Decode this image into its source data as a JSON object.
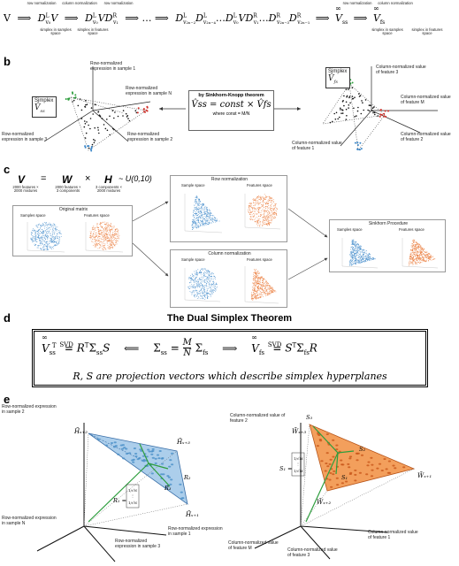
{
  "section_a": {
    "formula": "V ⟹ D^L_{v0} V ⟹ D^L_{v0} V D^R_{v1} ⟹ … ⟹ D^L_{v2n−2} D^L_{v2n−4} … D^L_{v0} V D^R_{v1} … D^R_{v2n−3} D^R_{v2n−1} ⟹ V̂ss ⟹ V̂fs",
    "parts": {
      "V": "V",
      "t1": "D",
      "t2": "D",
      "dots1": "…",
      "long": "D",
      "vss": "V",
      "vfs": "V"
    },
    "arrow_labels": [
      {
        "top": "row normalization",
        "bottom": "simplex in samples space"
      },
      {
        "top": "column normalization",
        "bottom": "simplex in features space"
      },
      {
        "top": "row normalization",
        "bottom": ""
      },
      {
        "top": "column normalization",
        "bottom": ""
      }
    ],
    "end_labels": [
      {
        "top": "row normalization",
        "bottom": "simplex in samples space"
      },
      {
        "top": "column normalization",
        "bottom": "simplex in features space"
      }
    ]
  },
  "section_b": {
    "label": "b",
    "left_simplex": "Simplex",
    "left_axes": [
      "Row-normalized expression in sample 1",
      "Row-normalized expression in sample N",
      "Row-normalized expression in sample 3",
      "Row-normalized expression in sample 2"
    ],
    "theorem_title": "by Sinkhorn-Knopp theorem",
    "theorem_formula": "V̂ss = const × V̂fs",
    "theorem_where": "where const = M/N",
    "right_simplex": "Simplex",
    "right_axes": [
      "Column-normalized value of feature 3",
      "Column-normalized value of feature M",
      "Column-normalized value of feature 2",
      "Column-normalized value of feature 1"
    ]
  },
  "section_c": {
    "label": "c",
    "equation": {
      "V": "V",
      "eq": "=",
      "W": "W",
      "x": "×",
      "H": "H",
      "dist": "~ U(0,10)",
      "V_dims": "2000 features × 2000 mixtures",
      "W_dims": "2000 features × 3 components",
      "H_dims": "3 components × 2000 mixtures"
    },
    "original": {
      "title": "Original matrix",
      "left": "Samples space",
      "right": "Features space"
    },
    "row_norm": {
      "title": "Row normalization",
      "left": "Sample space",
      "right": "Features space"
    },
    "col_norm": {
      "title": "Column normalization",
      "left": "Sample space",
      "right": "Features space"
    },
    "sinkhorn": {
      "title": "Sinkhorn Procedure",
      "left": "Samples space",
      "right": "Features space"
    }
  },
  "section_d": {
    "label": "d",
    "title": "The Dual Simplex Theorem",
    "line1": "V̂ssᵀ = Rᵀ Σss S   ⟸   Σss = (M/N) Σfs   ⟹   V̂fs = Sᵀ Σfs R",
    "line2": "R, S are projection vectors which describe simplex hyperplanes",
    "svd": "SVD"
  },
  "section_e": {
    "label": "e",
    "left_axes": [
      "Row-normalized expression in sample 2",
      "Row-normalized expression in sample N",
      "Row-normalized expression in sample 3",
      "Row-normalized expression in sample 1"
    ],
    "right_axes": [
      "Column-normalized value of feature 2",
      "Column-normalized value of feature M",
      "Column-normalized value of feature 3",
      "Column-normalized value of feature 1"
    ]
  },
  "colors": {
    "blue": "#3a86c8",
    "orange": "#e8702a",
    "green": "#2e9e3e",
    "red": "#d0302a",
    "simplex_blue_fill": "#9ec6e8",
    "simplex_orange_fill": "#f2954a"
  }
}
